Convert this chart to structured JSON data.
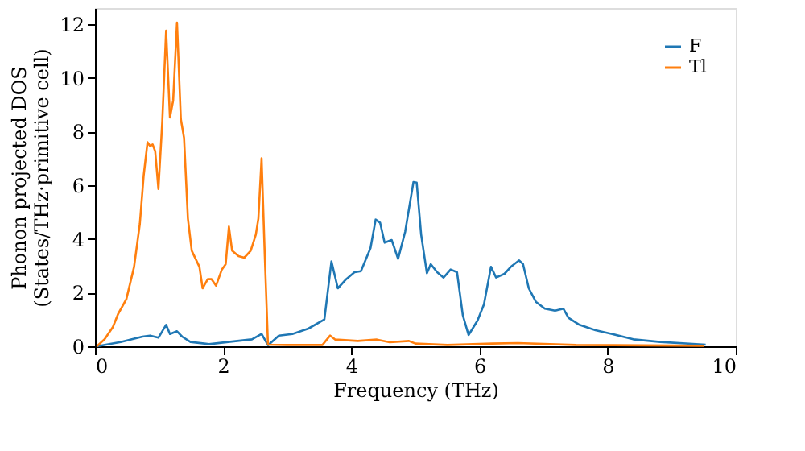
{
  "chart_data": {
    "type": "line",
    "xlabel": "Frequency (THz)",
    "ylabel": "Phonon projected DOS\n(States/THz·primitive cell)",
    "xlim": [
      0,
      10
    ],
    "xticks": [
      0,
      2,
      4,
      6,
      8,
      10
    ],
    "ylim": [
      0,
      12.6
    ],
    "yticks": [
      0,
      2,
      4,
      6,
      8,
      10,
      12
    ],
    "grid": false,
    "legend": "top right",
    "series": [
      {
        "name": "F",
        "color": "#1f77b4",
        "x": [
          0.03,
          0.4,
          0.74,
          0.86,
          0.99,
          1.11,
          1.17,
          1.28,
          1.36,
          1.49,
          1.78,
          2.08,
          2.45,
          2.6,
          2.7,
          2.87,
          3.08,
          3.33,
          3.58,
          3.69,
          3.79,
          3.92,
          4.05,
          4.15,
          4.3,
          4.38,
          4.45,
          4.52,
          4.63,
          4.73,
          4.84,
          4.97,
          5.02,
          5.09,
          5.18,
          5.24,
          5.34,
          5.44,
          5.55,
          5.65,
          5.74,
          5.83,
          5.97,
          6.07,
          6.18,
          6.26,
          6.39,
          6.49,
          6.62,
          6.68,
          6.77,
          6.88,
          7.02,
          7.18,
          7.31,
          7.39,
          7.56,
          7.81,
          8.07,
          8.4,
          8.82,
          9.53
        ],
        "values": [
          0,
          0.16,
          0.36,
          0.4,
          0.32,
          0.8,
          0.46,
          0.56,
          0.36,
          0.16,
          0.08,
          0.16,
          0.26,
          0.46,
          0.04,
          0.4,
          0.46,
          0.66,
          1.0,
          3.16,
          2.16,
          2.5,
          2.76,
          2.8,
          3.66,
          4.72,
          4.6,
          3.86,
          3.96,
          3.26,
          4.26,
          6.12,
          6.1,
          4.16,
          2.72,
          3.06,
          2.76,
          2.56,
          2.86,
          2.76,
          1.16,
          0.42,
          0.96,
          1.56,
          2.96,
          2.56,
          2.7,
          2.96,
          3.2,
          3.06,
          2.16,
          1.66,
          1.4,
          1.33,
          1.4,
          1.06,
          0.8,
          0.6,
          0.46,
          0.26,
          0.16,
          0.06
        ]
      },
      {
        "name": "Tl",
        "color": "#ff7f0e",
        "x": [
          0.03,
          0.15,
          0.28,
          0.36,
          0.49,
          0.61,
          0.7,
          0.76,
          0.82,
          0.86,
          0.9,
          0.94,
          0.99,
          1.05,
          1.11,
          1.17,
          1.22,
          1.28,
          1.34,
          1.39,
          1.45,
          1.51,
          1.57,
          1.63,
          1.68,
          1.76,
          1.82,
          1.89,
          1.98,
          2.04,
          2.09,
          2.14,
          2.24,
          2.33,
          2.43,
          2.51,
          2.55,
          2.6,
          2.65,
          2.7,
          3.0,
          3.55,
          3.6,
          3.67,
          3.75,
          4.1,
          4.4,
          4.6,
          4.9,
          5.0,
          5.5,
          6.2,
          6.6,
          7.5,
          9.5
        ],
        "values": [
          0,
          0.26,
          0.72,
          1.2,
          1.76,
          2.96,
          4.56,
          6.36,
          7.6,
          7.46,
          7.52,
          7.26,
          5.86,
          8.36,
          11.76,
          8.52,
          9.16,
          12.06,
          8.46,
          7.76,
          4.76,
          3.56,
          3.26,
          2.96,
          2.16,
          2.5,
          2.5,
          2.26,
          2.86,
          3.06,
          4.46,
          3.56,
          3.36,
          3.3,
          3.56,
          4.16,
          4.76,
          7.0,
          3.36,
          0.06,
          0.05,
          0.05,
          0.2,
          0.4,
          0.25,
          0.2,
          0.25,
          0.15,
          0.2,
          0.1,
          0.05,
          0.1,
          0.12,
          0.05,
          0.02
        ]
      }
    ]
  }
}
